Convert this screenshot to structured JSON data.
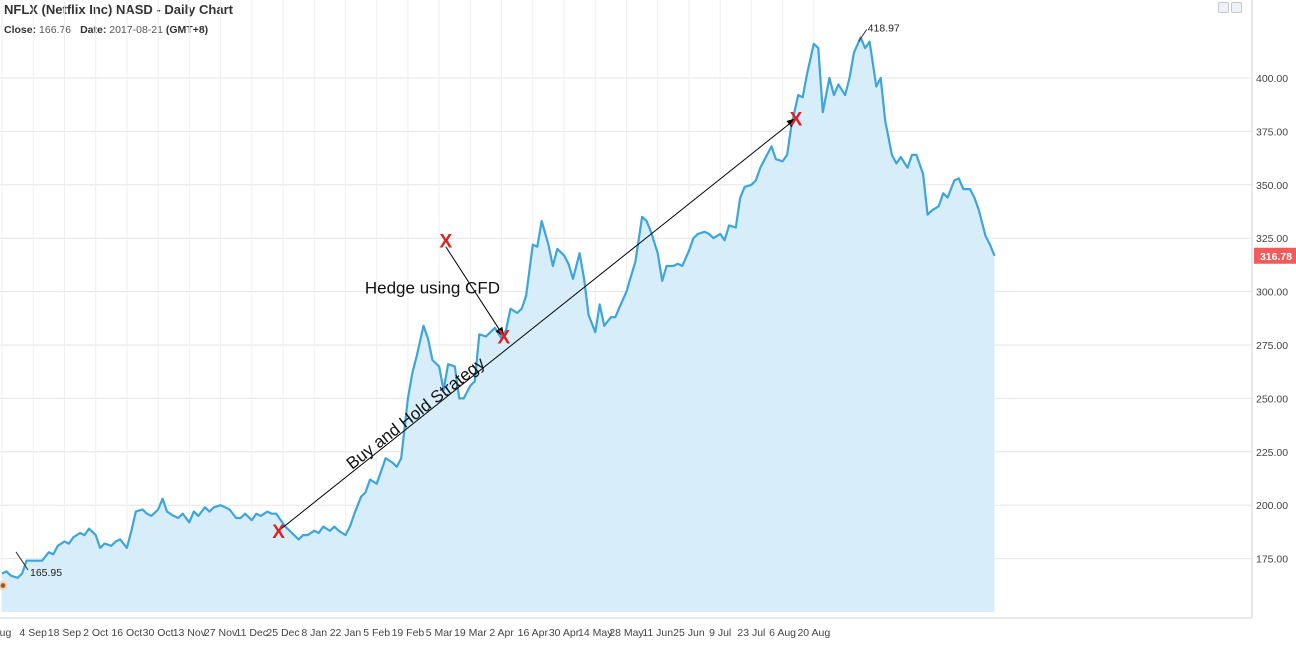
{
  "header": {
    "title": "NFLX (Netflix Inc) NASD - Daily Chart",
    "close_label": "Close:",
    "close_value": "166.76",
    "date_label": "Date:",
    "date_value": "2017-08-21",
    "timezone": "(GMT+8)"
  },
  "toolbar": {
    "image_icon": "image-icon",
    "options_icon": "options-icon"
  },
  "colors": {
    "line": "#3da5dc",
    "area": "#d7eefa",
    "grid": "#e6e6e6",
    "last_price_bg": "#f25b5b",
    "marker": "#e02020",
    "arrow": "#000000"
  },
  "chart_data": {
    "type": "area",
    "title": "NFLX (Netflix Inc) NASD - Daily Chart",
    "ylim": [
      150,
      425
    ],
    "y_ticks": [
      175,
      200,
      225,
      250,
      275,
      300,
      325,
      350,
      375,
      400
    ],
    "y_tick_labels": [
      "175.00",
      "200.00",
      "225.00",
      "250.00",
      "275.00",
      "300.00",
      "325.00",
      "350.00",
      "375.00",
      "400.00"
    ],
    "x_ticks": [
      {
        "label": "Aug",
        "date": "2017-08-21"
      },
      {
        "label": "4 Sep",
        "date": "2017-09-04"
      },
      {
        "label": "18 Sep",
        "date": "2017-09-18"
      },
      {
        "label": "2 Oct",
        "date": "2017-10-02"
      },
      {
        "label": "16 Oct",
        "date": "2017-10-16"
      },
      {
        "label": "30 Oct",
        "date": "2017-10-30"
      },
      {
        "label": "13 Nov",
        "date": "2017-11-13"
      },
      {
        "label": "27 Nov",
        "date": "2017-11-27"
      },
      {
        "label": "11 Dec",
        "date": "2017-12-11"
      },
      {
        "label": "25 Dec",
        "date": "2017-12-25"
      },
      {
        "label": "8 Jan",
        "date": "2018-01-08"
      },
      {
        "label": "22 Jan",
        "date": "2018-01-22"
      },
      {
        "label": "5 Feb",
        "date": "2018-02-05"
      },
      {
        "label": "19 Feb",
        "date": "2018-02-19"
      },
      {
        "label": "5 Mar",
        "date": "2018-03-05"
      },
      {
        "label": "19 Mar",
        "date": "2018-03-19"
      },
      {
        "label": "2 Apr",
        "date": "2018-04-02"
      },
      {
        "label": "16 Apr",
        "date": "2018-04-16"
      },
      {
        "label": "30 Apr",
        "date": "2018-04-30"
      },
      {
        "label": "14 May",
        "date": "2018-05-14"
      },
      {
        "label": "28 May",
        "date": "2018-05-28"
      },
      {
        "label": "11 Jun",
        "date": "2018-06-11"
      },
      {
        "label": "25 Jun",
        "date": "2018-06-25"
      },
      {
        "label": "9 Jul",
        "date": "2018-07-09"
      },
      {
        "label": "23 Jul",
        "date": "2018-07-23"
      },
      {
        "label": "6 Aug",
        "date": "2018-08-06"
      },
      {
        "label": "20 Aug",
        "date": "2018-08-20"
      }
    ],
    "series": [
      {
        "points": [
          [
            "2017-08-21",
            168
          ],
          [
            "2017-08-23",
            169
          ],
          [
            "2017-08-25",
            167
          ],
          [
            "2017-08-28",
            166
          ],
          [
            "2017-08-30",
            168
          ],
          [
            "2017-09-01",
            174
          ],
          [
            "2017-09-05",
            174
          ],
          [
            "2017-09-08",
            174
          ],
          [
            "2017-09-11",
            178
          ],
          [
            "2017-09-13",
            177
          ],
          [
            "2017-09-15",
            181
          ],
          [
            "2017-09-18",
            183
          ],
          [
            "2017-09-20",
            182
          ],
          [
            "2017-09-22",
            185
          ],
          [
            "2017-09-25",
            187
          ],
          [
            "2017-09-27",
            186
          ],
          [
            "2017-09-29",
            189
          ],
          [
            "2017-10-02",
            186
          ],
          [
            "2017-10-04",
            180
          ],
          [
            "2017-10-06",
            182
          ],
          [
            "2017-10-09",
            181
          ],
          [
            "2017-10-11",
            183
          ],
          [
            "2017-10-13",
            184
          ],
          [
            "2017-10-16",
            180
          ],
          [
            "2017-10-18",
            188
          ],
          [
            "2017-10-20",
            197
          ],
          [
            "2017-10-23",
            198
          ],
          [
            "2017-10-25",
            196
          ],
          [
            "2017-10-27",
            195
          ],
          [
            "2017-10-30",
            198
          ],
          [
            "2017-11-01",
            203
          ],
          [
            "2017-11-03",
            197
          ],
          [
            "2017-11-06",
            195
          ],
          [
            "2017-11-08",
            194
          ],
          [
            "2017-11-10",
            196
          ],
          [
            "2017-11-13",
            192
          ],
          [
            "2017-11-15",
            197
          ],
          [
            "2017-11-17",
            195
          ],
          [
            "2017-11-20",
            199
          ],
          [
            "2017-11-22",
            197
          ],
          [
            "2017-11-24",
            199
          ],
          [
            "2017-11-27",
            200
          ],
          [
            "2017-11-29",
            199
          ],
          [
            "2017-12-01",
            198
          ],
          [
            "2017-12-04",
            194
          ],
          [
            "2017-12-06",
            194
          ],
          [
            "2017-12-08",
            196
          ],
          [
            "2017-12-11",
            193
          ],
          [
            "2017-12-13",
            196
          ],
          [
            "2017-12-15",
            195
          ],
          [
            "2017-12-18",
            197
          ],
          [
            "2017-12-20",
            196
          ],
          [
            "2017-12-22",
            196
          ],
          [
            "2017-12-26",
            190
          ],
          [
            "2017-12-28",
            188
          ],
          [
            "2018-01-01",
            184
          ],
          [
            "2018-01-03",
            186
          ],
          [
            "2018-01-05",
            186
          ],
          [
            "2018-01-08",
            188
          ],
          [
            "2018-01-10",
            187
          ],
          [
            "2018-01-12",
            190
          ],
          [
            "2018-01-15",
            188
          ],
          [
            "2018-01-17",
            190
          ],
          [
            "2018-01-19",
            188
          ],
          [
            "2018-01-22",
            186
          ],
          [
            "2018-01-24",
            190
          ],
          [
            "2018-01-26",
            196
          ],
          [
            "2018-01-29",
            204
          ],
          [
            "2018-01-31",
            206
          ],
          [
            "2018-02-02",
            212
          ],
          [
            "2018-02-05",
            210
          ],
          [
            "2018-02-07",
            216
          ],
          [
            "2018-02-09",
            222
          ],
          [
            "2018-02-12",
            220
          ],
          [
            "2018-02-14",
            218
          ],
          [
            "2018-02-16",
            222
          ],
          [
            "2018-02-19",
            250
          ],
          [
            "2018-02-21",
            262
          ],
          [
            "2018-02-23",
            270
          ],
          [
            "2018-02-26",
            284
          ],
          [
            "2018-02-28",
            278
          ],
          [
            "2018-03-02",
            268
          ],
          [
            "2018-03-05",
            265
          ],
          [
            "2018-03-07",
            254
          ],
          [
            "2018-03-09",
            266
          ],
          [
            "2018-03-12",
            265
          ],
          [
            "2018-03-14",
            250
          ],
          [
            "2018-03-16",
            250
          ],
          [
            "2018-03-19",
            256
          ],
          [
            "2018-03-21",
            258
          ],
          [
            "2018-03-23",
            280
          ],
          [
            "2018-03-26",
            279
          ],
          [
            "2018-03-28",
            281
          ],
          [
            "2018-03-30",
            283
          ],
          [
            "2018-04-02",
            278
          ],
          [
            "2018-04-04",
            282
          ],
          [
            "2018-04-06",
            292
          ],
          [
            "2018-04-09",
            290
          ],
          [
            "2018-04-11",
            292
          ],
          [
            "2018-04-13",
            298
          ],
          [
            "2018-04-16",
            322
          ],
          [
            "2018-04-18",
            321
          ],
          [
            "2018-04-20",
            333
          ],
          [
            "2018-04-23",
            322
          ],
          [
            "2018-04-25",
            312
          ],
          [
            "2018-04-27",
            320
          ],
          [
            "2018-04-30",
            317
          ],
          [
            "2018-05-02",
            313
          ],
          [
            "2018-05-04",
            306
          ],
          [
            "2018-05-07",
            318
          ],
          [
            "2018-05-09",
            306
          ],
          [
            "2018-05-11",
            289
          ],
          [
            "2018-05-14",
            281
          ],
          [
            "2018-05-16",
            294
          ],
          [
            "2018-05-18",
            284
          ],
          [
            "2018-05-21",
            288
          ],
          [
            "2018-05-23",
            288
          ],
          [
            "2018-05-25",
            293
          ],
          [
            "2018-05-28",
            300
          ],
          [
            "2018-05-30",
            307
          ],
          [
            "2018-06-01",
            314
          ],
          [
            "2018-06-04",
            335
          ],
          [
            "2018-06-06",
            333
          ],
          [
            "2018-06-08",
            328
          ],
          [
            "2018-06-11",
            318
          ],
          [
            "2018-06-13",
            305
          ],
          [
            "2018-06-15",
            312
          ],
          [
            "2018-06-18",
            312
          ],
          [
            "2018-06-20",
            313
          ],
          [
            "2018-06-22",
            312
          ],
          [
            "2018-06-25",
            319
          ],
          [
            "2018-06-27",
            325
          ],
          [
            "2018-06-29",
            327
          ],
          [
            "2018-07-02",
            328
          ],
          [
            "2018-07-04",
            327
          ],
          [
            "2018-07-06",
            325
          ],
          [
            "2018-07-09",
            327
          ],
          [
            "2018-07-11",
            324
          ],
          [
            "2018-07-13",
            331
          ],
          [
            "2018-07-16",
            330
          ],
          [
            "2018-07-18",
            344
          ],
          [
            "2018-07-20",
            349
          ],
          [
            "2018-07-23",
            350
          ],
          [
            "2018-07-25",
            352
          ],
          [
            "2018-07-27",
            358
          ],
          [
            "2018-07-30",
            364
          ],
          [
            "2018-08-01",
            368
          ],
          [
            "2018-08-03",
            362
          ],
          [
            "2018-08-06",
            361
          ],
          [
            "2018-08-08",
            364
          ],
          [
            "2018-08-10",
            378
          ],
          [
            "2018-08-13",
            392
          ],
          [
            "2018-08-15",
            391
          ],
          [
            "2018-08-17",
            402
          ],
          [
            "2018-08-20",
            416
          ],
          [
            "2018-08-22",
            414
          ],
          [
            "2018-08-24",
            384
          ],
          [
            "2018-08-27",
            400
          ],
          [
            "2018-08-29",
            392
          ],
          [
            "2018-08-31",
            397
          ],
          [
            "2018-09-03",
            392
          ],
          [
            "2018-09-05",
            400
          ],
          [
            "2018-09-07",
            412
          ],
          [
            "2018-09-10",
            418.97
          ],
          [
            "2018-09-12",
            414
          ],
          [
            "2018-09-14",
            417
          ],
          [
            "2018-09-17",
            396
          ],
          [
            "2018-09-19",
            400
          ],
          [
            "2018-09-21",
            380
          ],
          [
            "2018-09-24",
            364
          ],
          [
            "2018-09-26",
            360
          ],
          [
            "2018-09-28",
            363
          ],
          [
            "2018-10-01",
            358
          ],
          [
            "2018-10-03",
            364
          ],
          [
            "2018-10-05",
            364
          ],
          [
            "2018-10-08",
            355
          ],
          [
            "2018-10-10",
            336
          ],
          [
            "2018-10-12",
            338
          ],
          [
            "2018-10-15",
            340
          ],
          [
            "2018-10-17",
            346
          ],
          [
            "2018-10-19",
            344
          ],
          [
            "2018-10-22",
            352
          ],
          [
            "2018-10-24",
            353
          ],
          [
            "2018-10-26",
            348
          ],
          [
            "2018-10-29",
            348
          ],
          [
            "2018-10-31",
            344
          ],
          [
            "2018-11-02",
            338
          ],
          [
            "2018-11-05",
            326
          ],
          [
            "2018-11-07",
            322
          ],
          [
            "2018-11-09",
            316.78
          ]
        ]
      }
    ],
    "high_label": {
      "text": "418.97",
      "date": "2018-09-10",
      "value": 418.97
    },
    "low_label": {
      "text": "165.95",
      "date": "2017-08-21",
      "value": 165.95
    },
    "last_price": {
      "text": "316.78",
      "value": 316.78
    },
    "annotations": [
      {
        "kind": "marker",
        "label": "X",
        "date": "2017-12-23",
        "value": 188
      },
      {
        "kind": "marker",
        "label": "X",
        "date": "2018-03-08",
        "value": 324
      },
      {
        "kind": "marker",
        "label": "X",
        "date": "2018-04-03",
        "value": 279
      },
      {
        "kind": "marker",
        "label": "X",
        "date": "2018-08-12",
        "value": 381
      },
      {
        "kind": "arrow",
        "from": {
          "date": "2017-12-23",
          "value": 188
        },
        "to": {
          "date": "2018-08-12",
          "value": 381
        }
      },
      {
        "kind": "arrow",
        "from": {
          "date": "2018-03-08",
          "value": 321
        },
        "to": {
          "date": "2018-04-03",
          "value": 279
        }
      },
      {
        "kind": "text",
        "text": "Hedge using CFD",
        "date": "2018-03-02",
        "value": 299
      },
      {
        "kind": "text",
        "text": "Buy and Hold Strategy",
        "date": "2018-02-24",
        "value": 241,
        "rotated": true
      }
    ]
  }
}
